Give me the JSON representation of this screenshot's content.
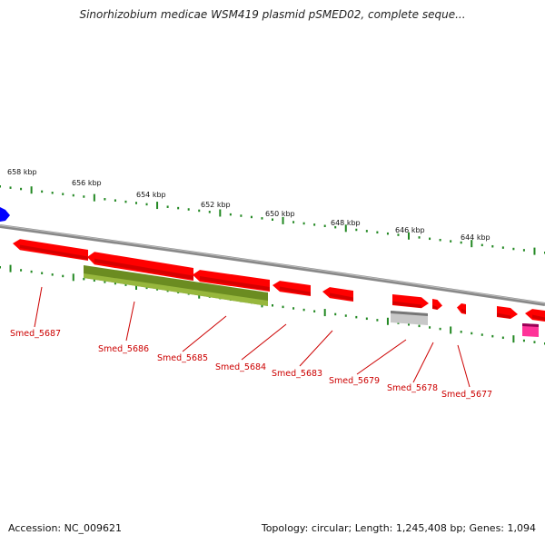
{
  "title": "Sinorhizobium medicae WSM419 plasmid pSMED02, complete seque...",
  "footer": {
    "accession": "Accession: NC_009621",
    "summary": "Topology: circular; Length: 1,245,408 bp; Genes: 1,094"
  },
  "colors": {
    "gene_red": "#ff0000",
    "gene_olive": "#6b8c21",
    "gene_gray": "#c8c8c8",
    "gene_pink": "#ff3399",
    "gene_blue": "#0000ff",
    "backbone": "#888888",
    "tick_green": "#228822",
    "label_red": "#cc0000"
  },
  "scale_ticks": [
    "658 kbp",
    "656 kbp",
    "654 kbp",
    "652 kbp",
    "650 kbp",
    "648 kbp",
    "646 kbp",
    "644 kbp"
  ],
  "gene_labels": [
    "Smed_5687",
    "Smed_5686",
    "Smed_5685",
    "Smed_5684",
    "Smed_5683",
    "Smed_5679",
    "Smed_5678",
    "Smed_5677"
  ]
}
